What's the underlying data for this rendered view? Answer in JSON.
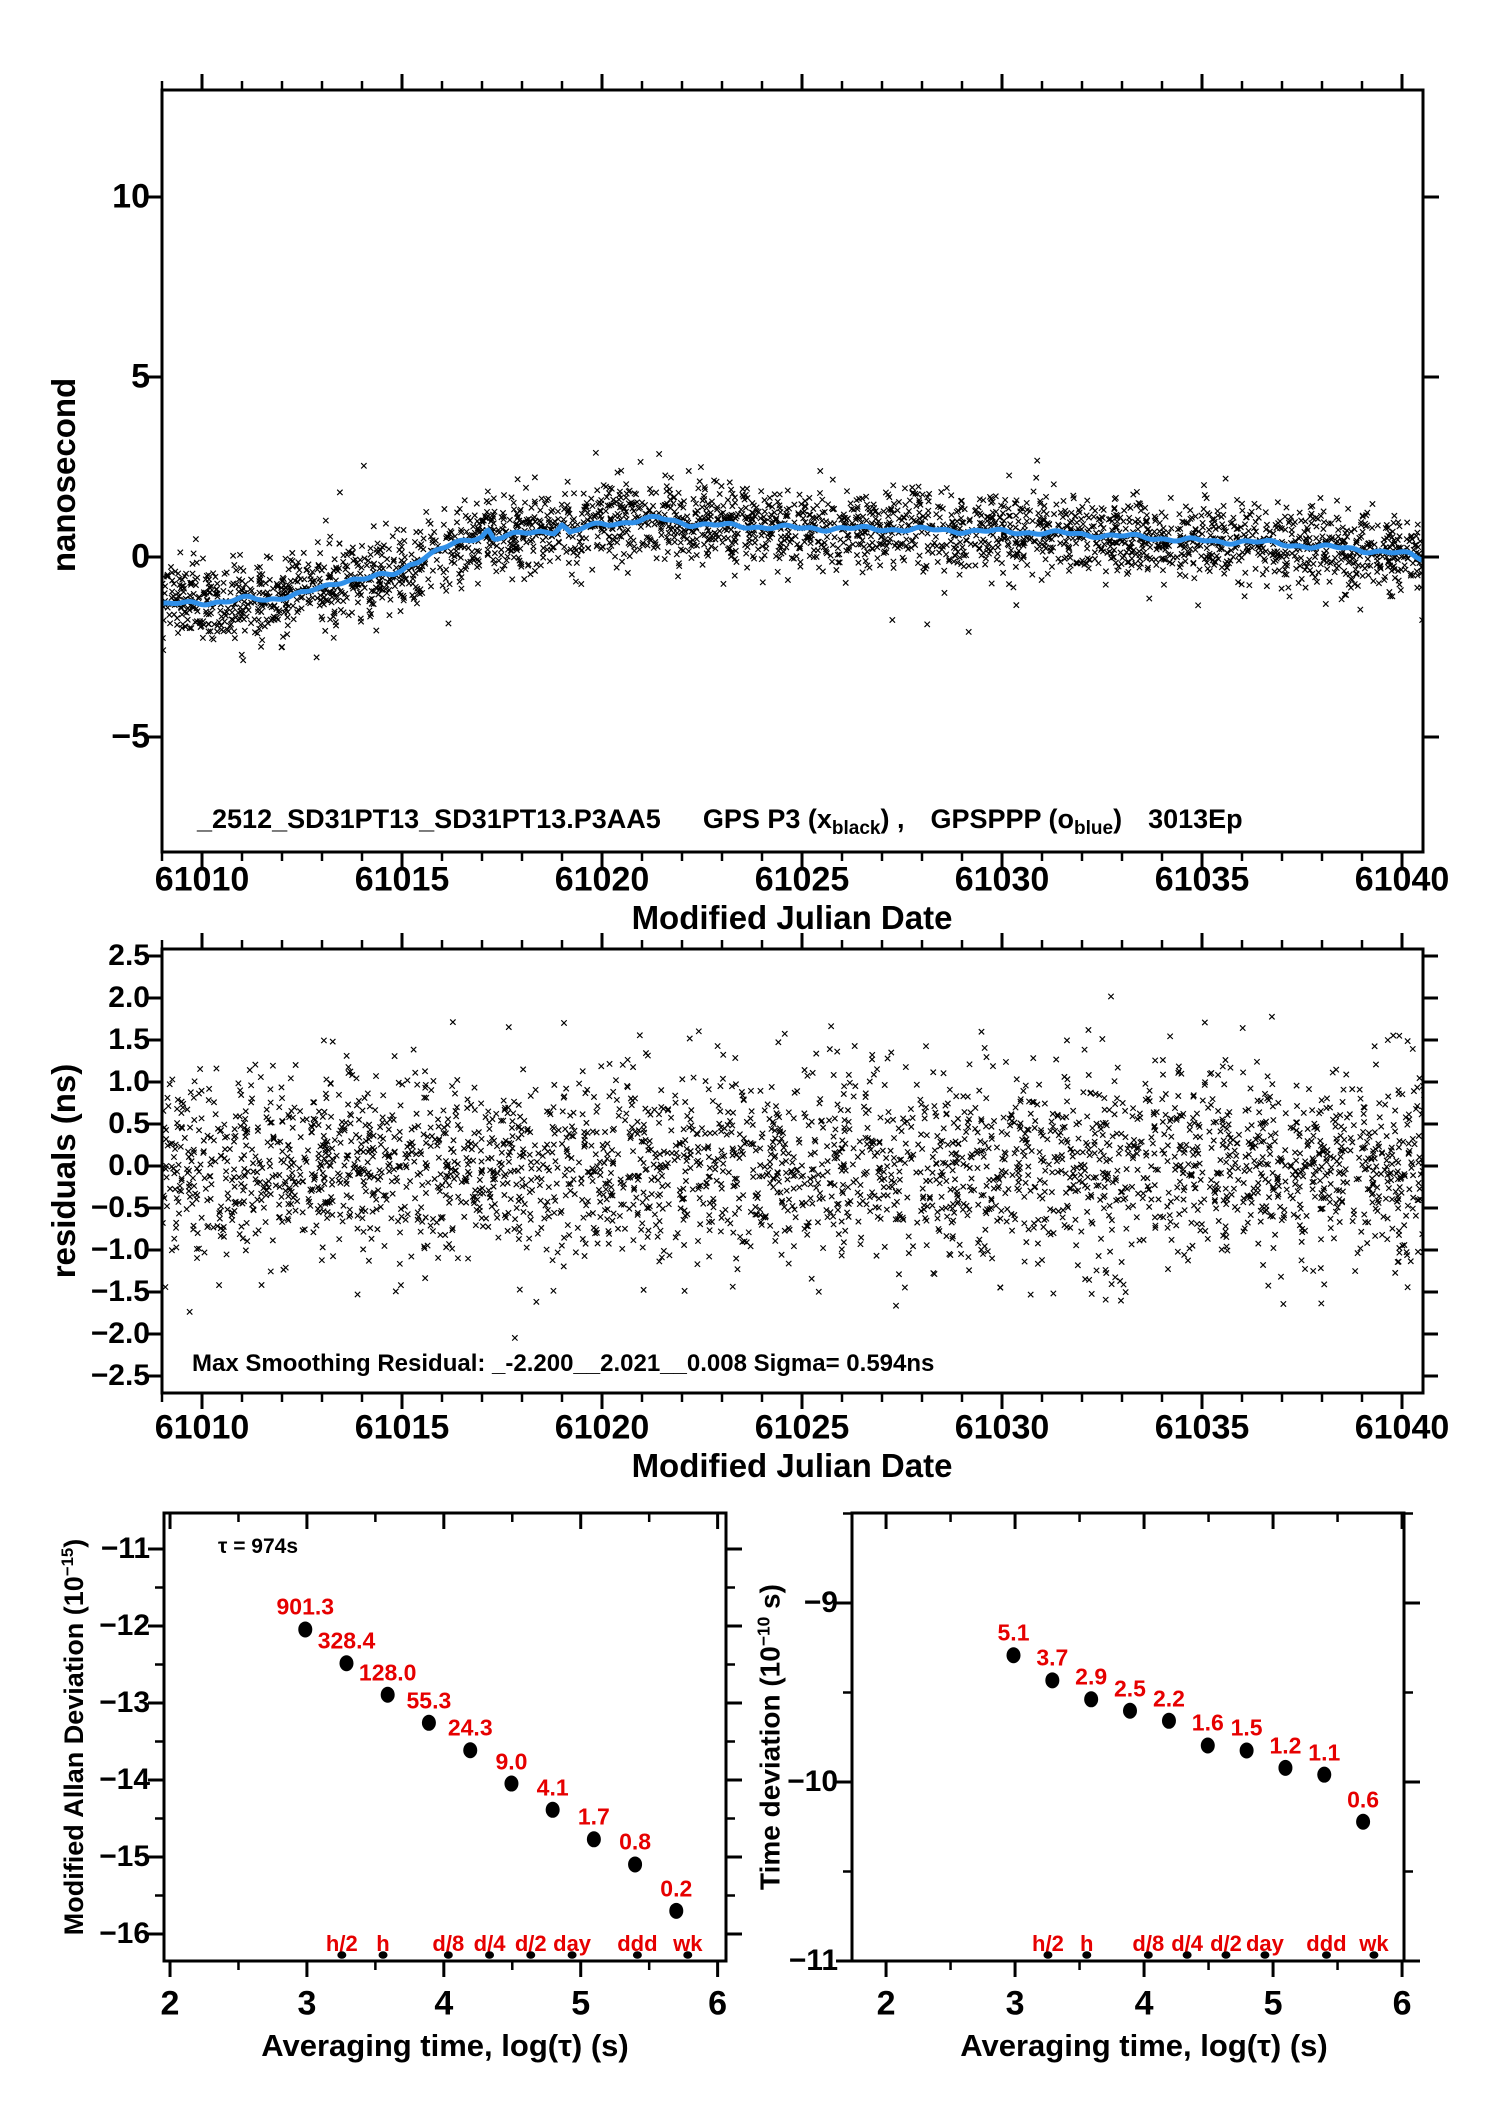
{
  "colors": {
    "foreground": "#000000",
    "background": "#ffffff",
    "smoothing_line_blue": "#2f8fe8",
    "label_red": "#e60000"
  },
  "chart_data": [
    {
      "id": "gps-time-series",
      "type": "scatter",
      "title": {
        "file": "_2512_SD31PT13_SD31PT13.P3AA5",
        "series1_prefix": "GPS P3 (x",
        "series1_sub": "black",
        "series1_suffix": ") ,",
        "series2_prefix": "GPSPPP (o",
        "series2_sub": "blue",
        "series2_suffix": ")",
        "tag": "3013Ep"
      },
      "xlabel": "Modified Julian Date",
      "ylabel": "nanosecond",
      "xlim": [
        61009.0,
        61040.6
      ],
      "ylim": [
        -8.2,
        13.0
      ],
      "xticks": {
        "major": [
          61010,
          61015,
          61020,
          61025,
          61030,
          61035,
          61040
        ],
        "labels": [
          "61010",
          "61015",
          "61020",
          "61025",
          "61030",
          "61035",
          "61040"
        ],
        "minor_step": 1
      },
      "yticks": {
        "major": [
          10,
          5,
          0,
          -5
        ],
        "labels": [
          "10",
          "5",
          "0",
          "−5"
        ]
      },
      "grid": false,
      "series": [
        {
          "name": "GPS P3",
          "marker": "x",
          "color": "#000000",
          "generated": {
            "n": 2900,
            "seed": 101,
            "sigma": 0.55,
            "outlier_frac": 0.025,
            "outlier_sigma": 1.35
          }
        },
        {
          "name": "GPSPPP",
          "marker": "o",
          "color": "#2f8fe8",
          "style": "thick-smoothed-line"
        }
      ],
      "trend": [
        [
          61009.0,
          -1.32
        ],
        [
          61009.5,
          -1.3
        ],
        [
          61010.2,
          -1.26
        ],
        [
          61010.8,
          -1.2
        ],
        [
          61011.2,
          -1.15
        ],
        [
          61011.6,
          -1.2
        ],
        [
          61012.1,
          -1.08
        ],
        [
          61012.6,
          -0.98
        ],
        [
          61013.0,
          -0.88
        ],
        [
          61013.4,
          -0.7
        ],
        [
          61013.8,
          -0.6
        ],
        [
          61014.3,
          -0.56
        ],
        [
          61014.8,
          -0.48
        ],
        [
          61015.0,
          -0.38
        ],
        [
          61015.2,
          -0.2
        ],
        [
          61015.5,
          -0.02
        ],
        [
          61015.9,
          0.18
        ],
        [
          61016.3,
          0.35
        ],
        [
          61016.7,
          0.48
        ],
        [
          61017.0,
          0.6
        ],
        [
          61017.15,
          0.78
        ],
        [
          61017.3,
          0.52
        ],
        [
          61017.6,
          0.58
        ],
        [
          61018.0,
          0.64
        ],
        [
          61018.4,
          0.7
        ],
        [
          61018.8,
          0.72
        ],
        [
          61019.0,
          0.92
        ],
        [
          61019.2,
          0.66
        ],
        [
          61019.6,
          0.82
        ],
        [
          61020.0,
          0.92
        ],
        [
          61020.5,
          0.96
        ],
        [
          61021.0,
          1.02
        ],
        [
          61021.4,
          1.08
        ],
        [
          61021.8,
          1.0
        ],
        [
          61022.2,
          0.92
        ],
        [
          61022.8,
          0.88
        ],
        [
          61023.5,
          0.86
        ],
        [
          61024.2,
          0.83
        ],
        [
          61025.0,
          0.8
        ],
        [
          61026.0,
          0.79
        ],
        [
          61027.0,
          0.78
        ],
        [
          61028.0,
          0.76
        ],
        [
          61029.0,
          0.73
        ],
        [
          61030.0,
          0.7
        ],
        [
          61031.0,
          0.68
        ],
        [
          61032.0,
          0.63
        ],
        [
          61033.0,
          0.58
        ],
        [
          61034.0,
          0.52
        ],
        [
          61034.8,
          0.46
        ],
        [
          61035.4,
          0.42
        ],
        [
          61036.0,
          0.44
        ],
        [
          61036.6,
          0.4
        ],
        [
          61037.2,
          0.34
        ],
        [
          61038.0,
          0.28
        ],
        [
          61038.8,
          0.22
        ],
        [
          61039.5,
          0.15
        ],
        [
          61040.2,
          0.06
        ],
        [
          61040.6,
          -0.08
        ]
      ]
    },
    {
      "id": "residuals",
      "type": "scatter",
      "xlabel": "Modified Julian Date",
      "ylabel": "residuals (ns)",
      "annotation": "Max Smoothing Residual: _-2.200__2.021__0.008  Sigma= 0.594ns",
      "stats": {
        "min": -2.2,
        "max": 2.021,
        "mean": 0.008,
        "sigma_ns": 0.594
      },
      "xlim": [
        61009.0,
        61040.6
      ],
      "ylim": [
        -2.7,
        2.58
      ],
      "xticks": {
        "major": [
          61010,
          61015,
          61020,
          61025,
          61030,
          61035,
          61040
        ],
        "labels": [
          "61010",
          "61015",
          "61020",
          "61025",
          "61030",
          "61035",
          "61040"
        ],
        "minor_step": 1
      },
      "yticks": {
        "major": [
          2.5,
          2.0,
          1.5,
          1.0,
          0.5,
          0.0,
          -0.5,
          -1.0,
          -1.5,
          -2.0,
          -2.5
        ],
        "labels": [
          "2.5",
          "2.0",
          "1.5",
          "1.0",
          "0.5",
          "0.0",
          "−0.5",
          "−1.0",
          "−1.5",
          "−2.0",
          "−2.5"
        ]
      },
      "grid": false,
      "series": [
        {
          "name": "smoothing residuals",
          "marker": "x",
          "color": "#000000",
          "generated": {
            "n": 2900,
            "seed": 202,
            "sigma": 0.594,
            "clip_min": -2.2,
            "clip_max": 2.021
          }
        }
      ]
    },
    {
      "id": "mdev",
      "type": "scatter",
      "xlabel": "Averaging time, log(τ) (s)",
      "ylabel_prefix": "Modified Allan Deviation (10",
      "ylabel_sup": "−15",
      "ylabel_suffix": ")",
      "annotation": "τ = 974s",
      "xlim": [
        1.956,
        6.06
      ],
      "ylim": [
        -16.32,
        -10.53
      ],
      "xticks": {
        "major": [
          2,
          3,
          4,
          5,
          6
        ],
        "labels": [
          "2",
          "3",
          "4",
          "5",
          "6"
        ],
        "minor_step": 0.5
      },
      "yticks": {
        "major": [
          -11,
          -12,
          -13,
          -14,
          -15,
          -16
        ],
        "labels": [
          "−11",
          "−12",
          "−13",
          "−14",
          "−15",
          "−16"
        ],
        "minor_step": 0.5
      },
      "grid": false,
      "x_log_tau": [
        2.988,
        3.289,
        3.59,
        3.891,
        4.193,
        4.494,
        4.795,
        5.096,
        5.397,
        5.698
      ],
      "y_log_dev": [
        -12.045,
        -12.484,
        -12.893,
        -13.257,
        -13.614,
        -14.046,
        -14.387,
        -14.77,
        -15.097,
        -15.699
      ],
      "value_labels": [
        "901.3",
        "328.4",
        "128.0",
        "55.3",
        "24.3",
        "9.0",
        "4.1",
        "1.7",
        "0.8",
        "0.2"
      ],
      "values_1e15": [
        901.3,
        328.4,
        128.0,
        55.3,
        24.3,
        9.0,
        4.1,
        1.7,
        0.8,
        0.2
      ],
      "time_markers": {
        "labels": [
          "h/2",
          "h",
          "d/8",
          "d/4",
          "d/2",
          "day",
          "ddd",
          "wk"
        ],
        "log_x": [
          3.255,
          3.556,
          4.033,
          4.334,
          4.635,
          4.937,
          5.414,
          5.782
        ]
      }
    },
    {
      "id": "tdev",
      "type": "scatter",
      "xlabel": "Averaging time, log(τ) (s)",
      "ylabel_prefix": "Time deviation (10",
      "ylabel_sup": "−10",
      "ylabel_suffix": " s)",
      "xlim": [
        1.736,
        6.015
      ],
      "ylim": [
        -11.0,
        -8.49
      ],
      "xticks": {
        "major": [
          2,
          3,
          4,
          5,
          6
        ],
        "labels": [
          "2",
          "3",
          "4",
          "5",
          "6"
        ],
        "minor_step": 0.5
      },
      "yticks": {
        "major": [
          -9,
          -10,
          -11
        ],
        "labels": [
          "−9",
          "−10",
          "−11"
        ],
        "minor_step": 0.5
      },
      "grid": false,
      "x_log_tau": [
        2.988,
        3.289,
        3.59,
        3.891,
        4.193,
        4.494,
        4.795,
        5.096,
        5.397,
        5.698
      ],
      "y_log_dev": [
        -9.292,
        -9.432,
        -9.538,
        -9.602,
        -9.658,
        -9.796,
        -9.824,
        -9.921,
        -9.959,
        -10.222
      ],
      "value_labels": [
        "5.1",
        "3.7",
        "2.9",
        "2.5",
        "2.2",
        "1.6",
        "1.5",
        "1.2",
        "1.1",
        "0.6"
      ],
      "values_1e10": [
        5.1,
        3.7,
        2.9,
        2.5,
        2.2,
        1.6,
        1.5,
        1.2,
        1.1,
        0.6
      ],
      "time_markers": {
        "labels": [
          "h/2",
          "h",
          "d/8",
          "d/4",
          "d/2",
          "day",
          "ddd",
          "wk"
        ],
        "log_x": [
          3.255,
          3.556,
          4.033,
          4.334,
          4.635,
          4.937,
          5.414,
          5.782
        ]
      }
    }
  ]
}
